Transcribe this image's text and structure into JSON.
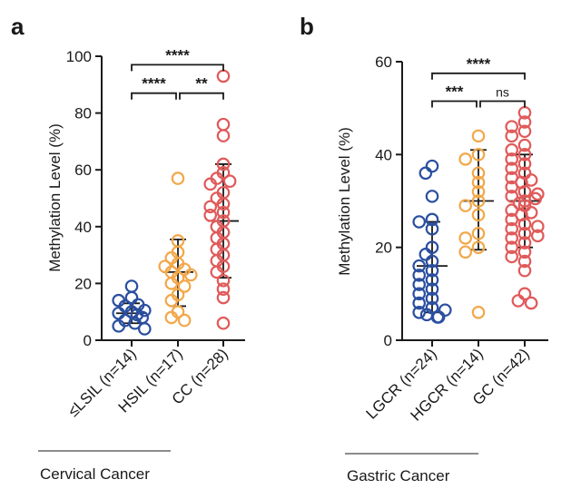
{
  "chart_data": [
    {
      "type": "scatter",
      "panel": "a",
      "ylabel": "Methylation Level (%)",
      "ylim": [
        0,
        100
      ],
      "yticks": [
        0,
        20,
        40,
        60,
        80,
        100
      ],
      "categories": [
        "≤LSIL (n=14)",
        "HSIL (n=17)",
        "CC (n=28)"
      ],
      "group_label": "Cervical Cancer",
      "series": [
        {
          "name": "≤LSIL (n=14)",
          "color": "#2a4fa0",
          "mean": 9.5,
          "sd_low": 6,
          "sd_high": 13,
          "values": [
            19,
            15,
            14,
            12.5,
            12,
            10.5,
            10,
            9.5,
            9,
            8,
            7,
            6,
            5,
            4
          ]
        },
        {
          "name": "HSIL (n=17)",
          "color": "#f2a84a",
          "mean": 24,
          "sd_low": 12,
          "sd_high": 35.5,
          "values": [
            57,
            35,
            31,
            29,
            27,
            26,
            25,
            24,
            23,
            22,
            20,
            19,
            16,
            14,
            10,
            8,
            7
          ]
        },
        {
          "name": "CC (n=28)",
          "color": "#e05a5a",
          "mean": 42,
          "sd_low": 22,
          "sd_high": 62,
          "values": [
            93,
            76,
            72,
            62,
            59,
            57,
            56,
            55,
            52,
            50,
            48,
            47,
            45,
            44,
            42,
            40,
            38,
            36,
            34,
            32,
            30,
            28,
            26,
            24,
            21,
            18,
            15,
            6
          ]
        }
      ],
      "significance": [
        {
          "from": 0,
          "to": 2,
          "label": "****",
          "y": 97
        },
        {
          "from": 0,
          "to": 1,
          "label": "****",
          "y": 87
        },
        {
          "from": 1,
          "to": 2,
          "label": "**",
          "y": 87
        }
      ]
    },
    {
      "type": "scatter",
      "panel": "b",
      "ylabel": "Methylation Level (%)",
      "ylim": [
        0,
        60
      ],
      "yticks": [
        0,
        20,
        40,
        60
      ],
      "categories": [
        "LGCR (n=24)",
        "HGCR (n=14)",
        "GC (n=42)"
      ],
      "group_label": "Gastric Cancer",
      "series": [
        {
          "name": "LGCR (n=24)",
          "color": "#2a4fa0",
          "mean": 16,
          "sd_low": 6,
          "sd_high": 25.5,
          "values": [
            37.5,
            36,
            31,
            26,
            25.5,
            24,
            20,
            18.5,
            17,
            16,
            15,
            14,
            13,
            12,
            11,
            10,
            9,
            8,
            7,
            6.5,
            6,
            5.5,
            5,
            5
          ]
        },
        {
          "name": "HGCR (n=14)",
          "color": "#f2a84a",
          "mean": 30,
          "sd_low": 19.5,
          "sd_high": 41,
          "values": [
            44,
            40,
            39,
            36,
            34,
            32,
            30,
            29,
            27,
            23,
            22,
            20,
            19,
            6
          ]
        },
        {
          "name": "GC (n=42)",
          "color": "#e05a5a",
          "mean": 30,
          "sd_low": 20,
          "sd_high": 40,
          "values": [
            49,
            47,
            46,
            45,
            44,
            42,
            41,
            40,
            39,
            38,
            37,
            36,
            35,
            34.5,
            34,
            33,
            32,
            31.5,
            31,
            30.5,
            30,
            29.5,
            29,
            28,
            27.5,
            27,
            26,
            25,
            24.5,
            24,
            23,
            22.5,
            22,
            21,
            20,
            19,
            18,
            17,
            15,
            10,
            8.5,
            8
          ]
        }
      ],
      "significance": [
        {
          "from": 0,
          "to": 2,
          "label": "****",
          "y": 57.5
        },
        {
          "from": 0,
          "to": 1,
          "label": "***",
          "y": 51.5
        },
        {
          "from": 1,
          "to": 2,
          "label": "ns",
          "y": 51.5
        }
      ]
    }
  ]
}
